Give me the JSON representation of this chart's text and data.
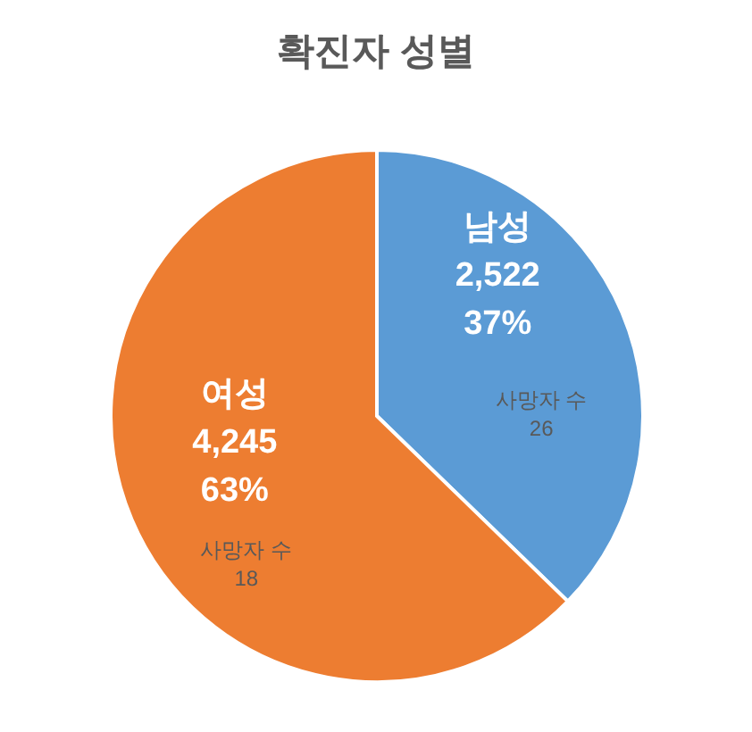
{
  "chart_data": {
    "type": "pie",
    "title": "확진자 성별",
    "categories": [
      "남성",
      "여성"
    ],
    "values": [
      2522,
      4245
    ],
    "colors": [
      "#5b9bd5",
      "#ed7d31"
    ],
    "value_labels": [
      "2,522\n37%",
      "4,245\n63%"
    ],
    "annotations": [
      "사망자 수\n26",
      "사망자 수\n18"
    ]
  }
}
